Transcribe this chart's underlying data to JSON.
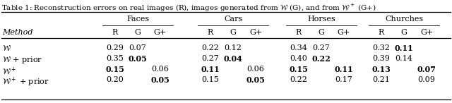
{
  "figsize": [
    6.4,
    1.46
  ],
  "dpi": 100,
  "categories": [
    "Faces",
    "Cars",
    "Horses",
    "Churches"
  ],
  "col_headers": [
    "R",
    "G",
    "G+"
  ],
  "row_labels": [
    "$\\mathcal{W}$",
    "$\\mathcal{W}$ + prior",
    "$\\mathcal{W}^+$",
    "$\\mathcal{W}^+$ + prior"
  ],
  "data": {
    "Faces": {
      "R": [
        "0.29",
        "0.35",
        "0.15",
        "0.20"
      ],
      "G": [
        "0.07",
        "0.05",
        "",
        ""
      ],
      "G+": [
        "",
        "",
        "0.06",
        "0.05"
      ]
    },
    "Cars": {
      "R": [
        "0.22",
        "0.27",
        "0.11",
        "0.15"
      ],
      "G": [
        "0.12",
        "0.04",
        "",
        ""
      ],
      "G+": [
        "",
        "",
        "0.06",
        "0.05"
      ]
    },
    "Horses": {
      "R": [
        "0.34",
        "0.40",
        "0.15",
        "0.22"
      ],
      "G": [
        "0.27",
        "0.22",
        "",
        ""
      ],
      "G+": [
        "",
        "",
        "0.11",
        "0.17"
      ]
    },
    "Churches": {
      "R": [
        "0.32",
        "0.39",
        "0.13",
        "0.21"
      ],
      "G": [
        "0.11",
        "0.14",
        "",
        ""
      ],
      "G+": [
        "",
        "",
        "0.07",
        "0.09"
      ]
    }
  },
  "bold": {
    "Faces": {
      "R": [
        false,
        false,
        true,
        false
      ],
      "G": [
        false,
        true,
        false,
        false
      ],
      "G+": [
        false,
        false,
        false,
        true
      ]
    },
    "Cars": {
      "R": [
        false,
        false,
        true,
        false
      ],
      "G": [
        false,
        true,
        false,
        false
      ],
      "G+": [
        false,
        false,
        false,
        true
      ]
    },
    "Horses": {
      "R": [
        false,
        false,
        true,
        false
      ],
      "G": [
        false,
        true,
        false,
        false
      ],
      "G+": [
        false,
        false,
        true,
        false
      ]
    },
    "Churches": {
      "R": [
        false,
        false,
        true,
        false
      ],
      "G": [
        true,
        false,
        false,
        false
      ],
      "G+": [
        false,
        false,
        true,
        false
      ]
    }
  },
  "title": "Table 1: Reconstruction errors on real images (R), images generated from $\\mathcal{W}$ (G), and from $\\mathcal{W}^+$ (G+)",
  "font_size": 8.0,
  "title_font_size": 7.5
}
